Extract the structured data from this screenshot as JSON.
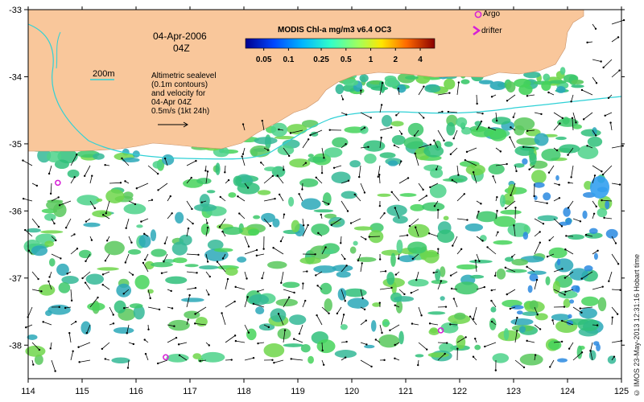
{
  "map": {
    "date_label": "04-Apr-2006",
    "time_label": "04Z",
    "isobath_label": "200m",
    "notes": [
      "Altimetric sealevel",
      "(0.1m contours)",
      "and velocity for",
      "04-Apr 04Z",
      "0.5m/s (1kt 24h)"
    ],
    "colorbar_title": "MODIS Chl-a mg/m3 v6.4 OC3",
    "colorbar_ticks": [
      "0.05",
      "0.1",
      "0.25",
      "0.5",
      "1",
      "2",
      "4"
    ],
    "legend_argo": "Argo",
    "legend_drifter": "drifter",
    "x_ticks": [
      "114",
      "115",
      "116",
      "117",
      "118",
      "119",
      "120",
      "121",
      "122",
      "123",
      "124",
      "125"
    ],
    "y_ticks": [
      "-33",
      "-34",
      "-35",
      "-36",
      "-37",
      "-38"
    ],
    "credit": "© IMOS 23-May-2013 12:31:16 Hobart time",
    "land_color": "#f9c79b",
    "isobath_color": "#2fd1d6",
    "argo_color": "#d61ed6",
    "lon_range": [
      114,
      125
    ],
    "lat_range": [
      -38.5,
      -33
    ]
  },
  "argo_floats": [
    {
      "lon": 114.55,
      "lat": -35.58
    },
    {
      "lon": 116.55,
      "lat": -38.18
    },
    {
      "lon": 121.65,
      "lat": -37.78
    }
  ]
}
